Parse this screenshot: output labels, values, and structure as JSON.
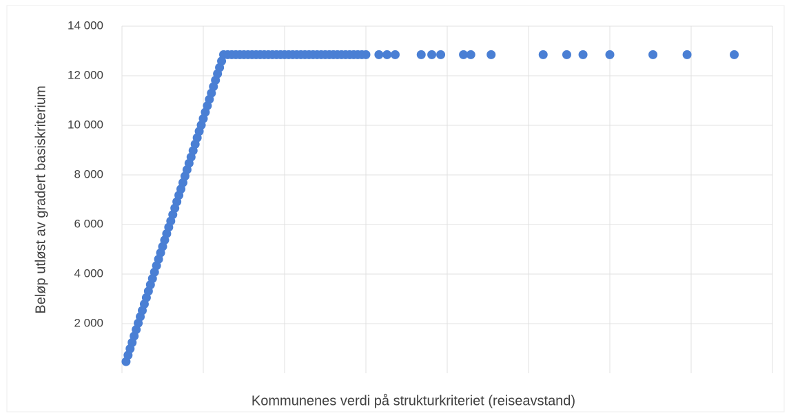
{
  "chart_data": {
    "type": "scatter",
    "xlabel": "Kommunenes verdi på strukturkriteriet (reiseavstand)",
    "ylabel": "Beløp utløst av gradert basiskriterium",
    "color": "#4a7fd4",
    "grid": true,
    "xlim": [
      0,
      8
    ],
    "xticks": [
      0,
      1,
      2,
      3,
      4,
      5,
      6,
      7,
      8
    ],
    "ylim": [
      0,
      14000
    ],
    "yticks": [
      {
        "value": 2000,
        "label": "2 000"
      },
      {
        "value": 4000,
        "label": "4 000"
      },
      {
        "value": 6000,
        "label": "6 000"
      },
      {
        "value": 8000,
        "label": "8 000"
      },
      {
        "value": 10000,
        "label": "10 000"
      },
      {
        "value": 12000,
        "label": "12 000"
      },
      {
        "value": 14000,
        "label": "14 000"
      }
    ],
    "x": [
      0.05,
      0.075,
      0.1,
      0.125,
      0.15,
      0.175,
      0.2,
      0.225,
      0.25,
      0.275,
      0.3,
      0.325,
      0.35,
      0.375,
      0.4,
      0.425,
      0.45,
      0.475,
      0.5,
      0.525,
      0.55,
      0.575,
      0.6,
      0.625,
      0.65,
      0.675,
      0.7,
      0.725,
      0.75,
      0.775,
      0.8,
      0.825,
      0.85,
      0.875,
      0.9,
      0.925,
      0.95,
      0.975,
      1.0,
      1.025,
      1.05,
      1.075,
      1.1,
      1.125,
      1.15,
      1.175,
      1.2,
      1.225,
      1.25,
      1.3,
      1.35,
      1.4,
      1.45,
      1.5,
      1.55,
      1.6,
      1.65,
      1.7,
      1.75,
      1.8,
      1.85,
      1.9,
      1.95,
      2.0,
      2.05,
      2.1,
      2.15,
      2.2,
      2.25,
      2.3,
      2.35,
      2.4,
      2.45,
      2.5,
      2.55,
      2.6,
      2.65,
      2.7,
      2.75,
      2.8,
      2.85,
      2.9,
      2.95,
      3.0,
      3.16,
      3.26,
      3.36,
      3.68,
      3.81,
      3.92,
      4.2,
      4.29,
      4.54,
      5.18,
      5.47,
      5.67,
      6.0,
      6.53,
      6.95,
      7.53
    ],
    "values": [
      470,
      730,
      990,
      1240,
      1500,
      1760,
      2020,
      2280,
      2530,
      2790,
      3050,
      3310,
      3570,
      3820,
      4080,
      4340,
      4600,
      4860,
      5110,
      5370,
      5630,
      5890,
      6140,
      6400,
      6660,
      6920,
      7180,
      7430,
      7690,
      7950,
      8210,
      8470,
      8720,
      8980,
      9240,
      9500,
      9760,
      10010,
      10270,
      10530,
      10790,
      11050,
      11300,
      11560,
      11820,
      12080,
      12330,
      12590,
      12850,
      12850,
      12850,
      12850,
      12850,
      12850,
      12850,
      12850,
      12850,
      12850,
      12850,
      12850,
      12850,
      12850,
      12850,
      12850,
      12850,
      12850,
      12850,
      12850,
      12850,
      12850,
      12850,
      12850,
      12850,
      12850,
      12850,
      12850,
      12850,
      12850,
      12850,
      12850,
      12850,
      12850,
      12850,
      12850,
      12850,
      12850,
      12850,
      12850,
      12850,
      12850,
      12850,
      12850,
      12850,
      12850,
      12850,
      12850,
      12850,
      12850,
      12850,
      12850
    ]
  }
}
